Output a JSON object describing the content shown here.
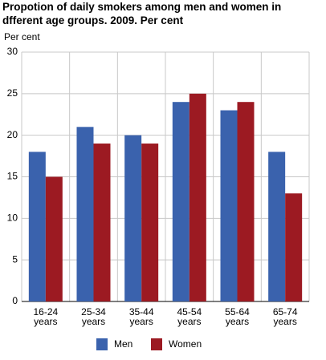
{
  "chart_data": {
    "type": "bar",
    "title": "Propotion of daily smokers among men and women in dfferent age groups. 2009. Per cent",
    "y_label": "Per cent",
    "categories": [
      "16-24 years",
      "25-34 years",
      "35-44 years",
      "45-54 years",
      "55-64 years",
      "65-74 years"
    ],
    "series": [
      {
        "name": "Men",
        "color": "#3a62ad",
        "values": [
          18,
          21,
          20,
          24,
          23,
          18
        ]
      },
      {
        "name": "Women",
        "color": "#9c1a22",
        "values": [
          15,
          19,
          19,
          25,
          24,
          13
        ]
      }
    ],
    "ylim": [
      0,
      30
    ],
    "yticks": [
      0,
      5,
      10,
      15,
      20,
      25,
      30
    ],
    "grid": true,
    "legend": "bottom"
  }
}
